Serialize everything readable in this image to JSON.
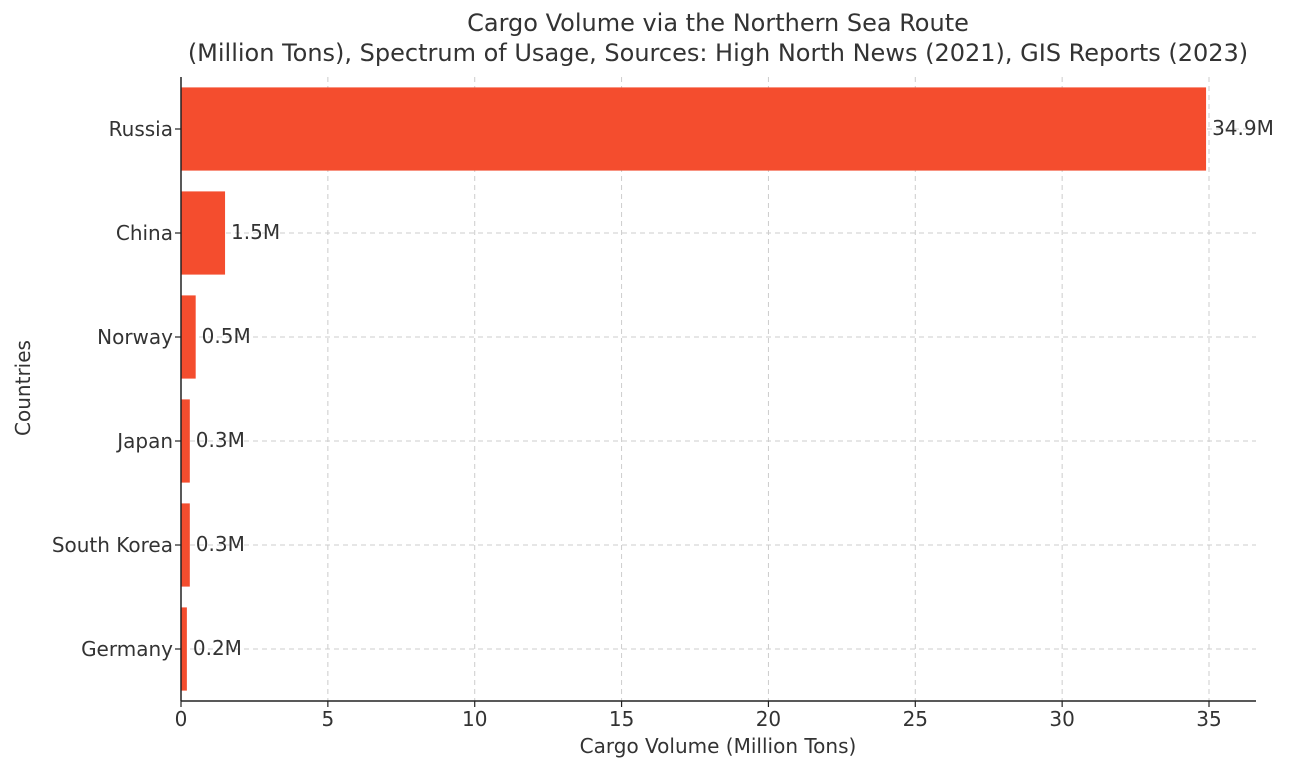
{
  "chart_data": {
    "type": "bar",
    "orientation": "horizontal",
    "title_line1": "Cargo Volume via the Northern Sea Route",
    "title_line2": "(Million Tons), Spectrum of Usage, Sources: High North News (2021), GIS Reports (2023)",
    "xlabel": "Cargo Volume (Million Tons)",
    "ylabel": "Countries",
    "categories": [
      "Russia",
      "China",
      "Norway",
      "Japan",
      "South Korea",
      "Germany"
    ],
    "values": [
      34.9,
      1.5,
      0.5,
      0.3,
      0.3,
      0.2
    ],
    "value_labels": [
      "34.9M",
      "1.5M",
      "0.5M",
      "0.3M",
      "0.3M",
      "0.2M"
    ],
    "xlim": [
      0,
      36.6
    ],
    "xticks": [
      0,
      5,
      10,
      15,
      20,
      25,
      30,
      35
    ],
    "grid": true,
    "bar_color": "#f44d2e"
  }
}
